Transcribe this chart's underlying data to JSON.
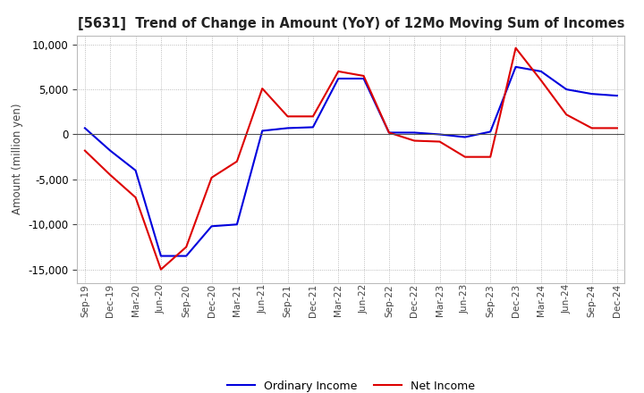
{
  "title": "[5631]  Trend of Change in Amount (YoY) of 12Mo Moving Sum of Incomes",
  "ylabel": "Amount (million yen)",
  "ylim": [
    -16500,
    11000
  ],
  "yticks": [
    -15000,
    -10000,
    -5000,
    0,
    5000,
    10000
  ],
  "background_color": "#ffffff",
  "grid_color": "#aaaaaa",
  "ordinary_income_color": "#0000dd",
  "net_income_color": "#dd0000",
  "dates": [
    "Sep-19",
    "Dec-19",
    "Mar-20",
    "Jun-20",
    "Sep-20",
    "Dec-20",
    "Mar-21",
    "Jun-21",
    "Sep-21",
    "Dec-21",
    "Mar-22",
    "Jun-22",
    "Sep-22",
    "Dec-22",
    "Mar-23",
    "Jun-23",
    "Sep-23",
    "Dec-23",
    "Mar-24",
    "Jun-24",
    "Sep-24",
    "Dec-24"
  ],
  "ordinary_income": [
    700,
    -1800,
    -4000,
    -13500,
    -13500,
    -10200,
    -10000,
    400,
    700,
    800,
    6200,
    6200,
    200,
    200,
    0,
    -300,
    300,
    7500,
    7000,
    5000,
    4500,
    4300
  ],
  "net_income": [
    -1800,
    -4500,
    -7000,
    -15000,
    -12500,
    -4800,
    -3000,
    5100,
    2000,
    2000,
    7000,
    6500,
    200,
    -700,
    -800,
    -2500,
    -2500,
    9600,
    6000,
    2200,
    700,
    700
  ]
}
